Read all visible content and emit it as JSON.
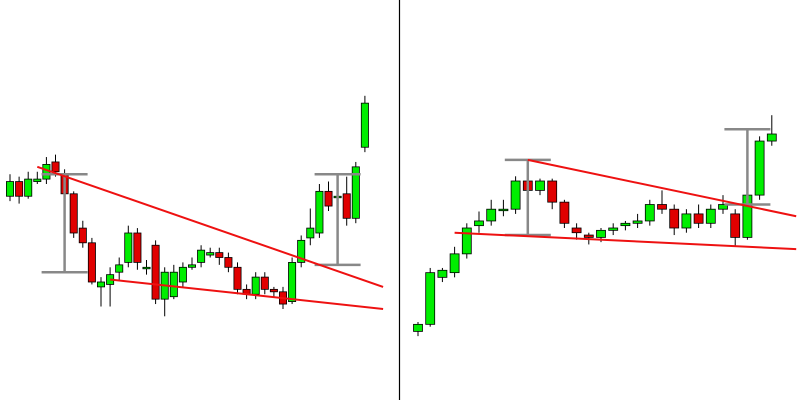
{
  "colors": {
    "up": "#00ee00",
    "down": "#e00000",
    "outline": "#000000",
    "trendline": "#ee1111",
    "measure": "#888888",
    "divider": "#000000",
    "background": "#ffffff"
  },
  "chart_data": [
    {
      "type": "candlestick",
      "title": "",
      "xlabel": "",
      "ylabel": "",
      "grid": false,
      "ylim": [
        0,
        100
      ],
      "candles": [
        {
          "o": 55,
          "c": 61,
          "h": 64,
          "l": 53
        },
        {
          "o": 61,
          "c": 55,
          "h": 63,
          "l": 52
        },
        {
          "o": 55,
          "c": 62,
          "h": 65,
          "l": 54
        },
        {
          "o": 61,
          "c": 62,
          "h": 65,
          "l": 60
        },
        {
          "o": 62,
          "c": 68,
          "h": 71,
          "l": 60
        },
        {
          "o": 69,
          "c": 65,
          "h": 72,
          "l": 63
        },
        {
          "o": 64,
          "c": 56,
          "h": 66,
          "l": 54
        },
        {
          "o": 56,
          "c": 40,
          "h": 57,
          "l": 38
        },
        {
          "o": 42,
          "c": 36,
          "h": 45,
          "l": 34
        },
        {
          "o": 36,
          "c": 20,
          "h": 38,
          "l": 19
        },
        {
          "o": 18,
          "c": 20,
          "h": 22,
          "l": 10
        },
        {
          "o": 19,
          "c": 23,
          "h": 26,
          "l": 10
        },
        {
          "o": 24,
          "c": 27,
          "h": 30,
          "l": 21
        },
        {
          "o": 28,
          "c": 40,
          "h": 43,
          "l": 26
        },
        {
          "o": 40,
          "c": 28,
          "h": 42,
          "l": 25
        },
        {
          "o": 26,
          "c": 26,
          "h": 29,
          "l": 23
        },
        {
          "o": 35,
          "c": 13,
          "h": 37,
          "l": 11
        },
        {
          "o": 13,
          "c": 24,
          "h": 26,
          "l": 6
        },
        {
          "o": 14,
          "c": 24,
          "h": 27,
          "l": 13
        },
        {
          "o": 20,
          "c": 26,
          "h": 28,
          "l": 18
        },
        {
          "o": 26,
          "c": 27,
          "h": 30,
          "l": 25
        },
        {
          "o": 28,
          "c": 33,
          "h": 35,
          "l": 26
        },
        {
          "o": 31,
          "c": 32,
          "h": 34,
          "l": 30
        },
        {
          "o": 32,
          "c": 30,
          "h": 34,
          "l": 27
        },
        {
          "o": 30,
          "c": 26,
          "h": 32,
          "l": 24
        },
        {
          "o": 26,
          "c": 17,
          "h": 28,
          "l": 15
        },
        {
          "o": 17,
          "c": 15,
          "h": 19,
          "l": 13
        },
        {
          "o": 15,
          "c": 22,
          "h": 24,
          "l": 13
        },
        {
          "o": 22,
          "c": 17,
          "h": 24,
          "l": 15
        },
        {
          "o": 17,
          "c": 16,
          "h": 18,
          "l": 14
        },
        {
          "o": 16,
          "c": 11,
          "h": 18,
          "l": 9
        },
        {
          "o": 12,
          "c": 28,
          "h": 30,
          "l": 11
        },
        {
          "o": 28,
          "c": 37,
          "h": 39,
          "l": 26
        },
        {
          "o": 38,
          "c": 42,
          "h": 50,
          "l": 35
        },
        {
          "o": 40,
          "c": 57,
          "h": 60,
          "l": 38
        },
        {
          "o": 57,
          "c": 51,
          "h": 61,
          "l": 49
        },
        {
          "o": 55,
          "c": 55,
          "h": 58,
          "l": 53
        },
        {
          "o": 56,
          "c": 46,
          "h": 63,
          "l": 43
        },
        {
          "o": 46,
          "c": 67,
          "h": 69,
          "l": 44
        },
        {
          "o": 75,
          "c": 93,
          "h": 96,
          "l": 73
        }
      ],
      "trendlines": [
        {
          "from": [
            3,
            67
          ],
          "to": [
            41,
            18
          ]
        },
        {
          "from": [
            11,
            21
          ],
          "to": [
            41,
            9
          ]
        }
      ],
      "measures": [
        {
          "x": 6,
          "top": 64,
          "bottom": 24
        },
        {
          "x": 36,
          "top": 64,
          "bottom": 27
        }
      ]
    },
    {
      "type": "candlestick",
      "title": "",
      "xlabel": "",
      "ylabel": "",
      "grid": false,
      "ylim": [
        0,
        100
      ],
      "candles": [
        {
          "o": 16,
          "c": 19,
          "h": 20,
          "l": 14
        },
        {
          "o": 19,
          "c": 41,
          "h": 43,
          "l": 18
        },
        {
          "o": 39,
          "c": 42,
          "h": 43,
          "l": 37
        },
        {
          "o": 41,
          "c": 49,
          "h": 52,
          "l": 39
        },
        {
          "o": 49,
          "c": 60,
          "h": 62,
          "l": 47
        },
        {
          "o": 61,
          "c": 63,
          "h": 67,
          "l": 58
        },
        {
          "o": 63,
          "c": 68,
          "h": 72,
          "l": 61
        },
        {
          "o": 68,
          "c": 68,
          "h": 72,
          "l": 65
        },
        {
          "o": 68,
          "c": 80,
          "h": 82,
          "l": 66
        },
        {
          "o": 80,
          "c": 76,
          "h": 83,
          "l": 74
        },
        {
          "o": 76,
          "c": 80,
          "h": 81,
          "l": 74
        },
        {
          "o": 80,
          "c": 71,
          "h": 81,
          "l": 68
        },
        {
          "o": 71,
          "c": 62,
          "h": 72,
          "l": 60
        },
        {
          "o": 60,
          "c": 58,
          "h": 62,
          "l": 55
        },
        {
          "o": 57,
          "c": 56,
          "h": 58,
          "l": 53
        },
        {
          "o": 56,
          "c": 59,
          "h": 60,
          "l": 54
        },
        {
          "o": 59,
          "c": 60,
          "h": 62,
          "l": 57
        },
        {
          "o": 61,
          "c": 62,
          "h": 63,
          "l": 59
        },
        {
          "o": 62,
          "c": 63,
          "h": 66,
          "l": 60
        },
        {
          "o": 63,
          "c": 70,
          "h": 72,
          "l": 61
        },
        {
          "o": 70,
          "c": 68,
          "h": 76,
          "l": 66
        },
        {
          "o": 68,
          "c": 60,
          "h": 70,
          "l": 57
        },
        {
          "o": 60,
          "c": 66,
          "h": 68,
          "l": 58
        },
        {
          "o": 66,
          "c": 62,
          "h": 70,
          "l": 60
        },
        {
          "o": 62,
          "c": 68,
          "h": 70,
          "l": 60
        },
        {
          "o": 68,
          "c": 70,
          "h": 74,
          "l": 66
        },
        {
          "o": 66,
          "c": 56,
          "h": 68,
          "l": 52
        },
        {
          "o": 56,
          "c": 74,
          "h": 76,
          "l": 55
        },
        {
          "o": 74,
          "c": 97,
          "h": 99,
          "l": 72
        },
        {
          "o": 97,
          "c": 100,
          "h": 108,
          "l": 95
        }
      ],
      "trendlines": [
        {
          "from": [
            9,
            89
          ],
          "to": [
            31,
            65
          ]
        },
        {
          "from": [
            3,
            58
          ],
          "to": [
            31,
            51
          ]
        }
      ],
      "measures": [
        {
          "x": 9,
          "top": 89,
          "bottom": 57
        },
        {
          "x": 27,
          "top": 102,
          "bottom": 70
        }
      ]
    }
  ]
}
